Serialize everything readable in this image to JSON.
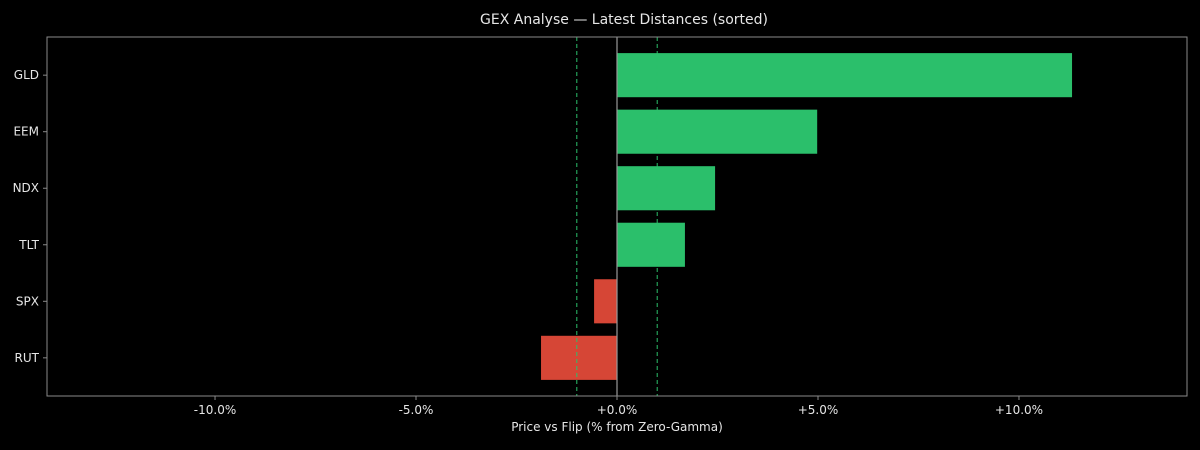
{
  "chart_data": {
    "type": "bar",
    "orientation": "horizontal",
    "title": "GEX Analyse — Latest Distances (sorted)",
    "xlabel": "Price vs Flip (% from Zero-Gamma)",
    "ylabel": "",
    "categories": [
      "GLD",
      "EEM",
      "NDX",
      "TLT",
      "SPX",
      "RUT"
    ],
    "values": [
      11.32,
      4.98,
      2.44,
      1.69,
      -0.57,
      -1.89
    ],
    "xlim": [
      -14.18,
      14.18
    ],
    "xticks": [
      -10,
      -5,
      0,
      5,
      10
    ],
    "xtick_labels": [
      "-10.0%",
      "-5.0%",
      "+0.0%",
      "+5.0%",
      "+10.0%"
    ],
    "reference_lines": [
      -1,
      1
    ],
    "zero_line": 0,
    "grid": false,
    "colors": {
      "positive": "#2bbf6b",
      "negative": "#d64636",
      "reference": "#2bbf6b",
      "background": "#000000",
      "axes": "#8a8a8a"
    }
  }
}
